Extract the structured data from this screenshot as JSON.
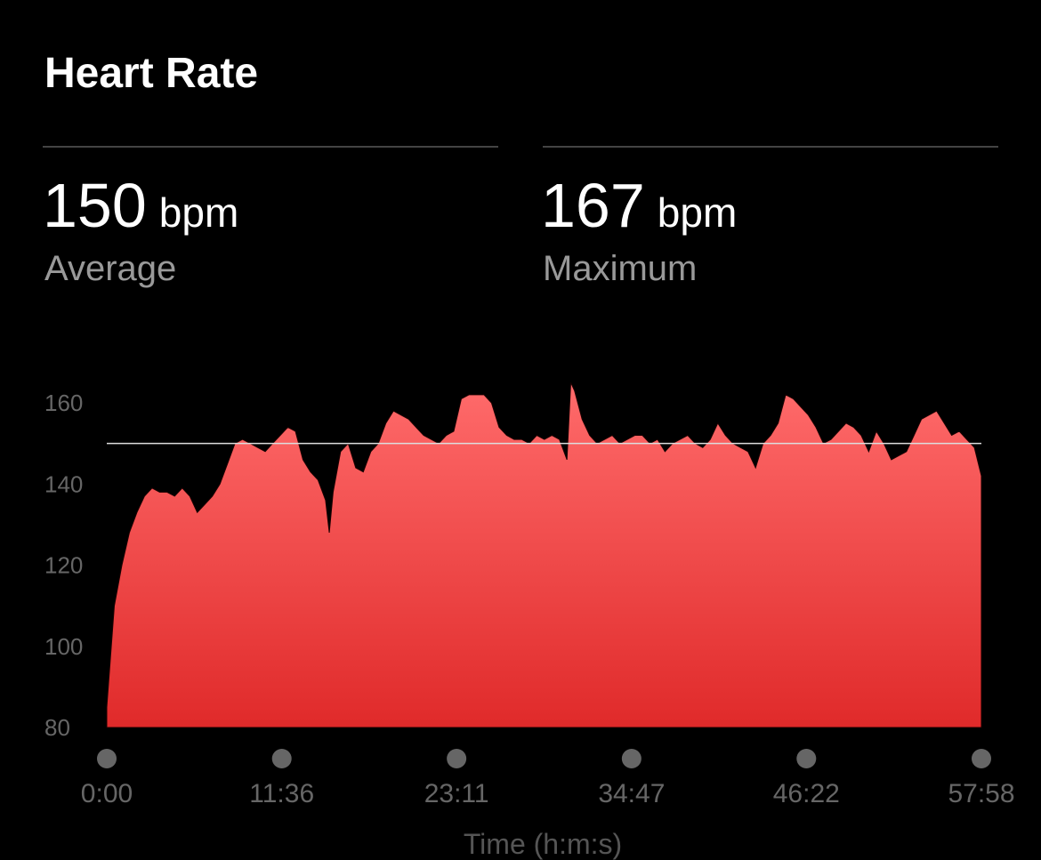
{
  "header": {
    "title": "Heart Rate"
  },
  "stats": [
    {
      "value": 150,
      "unit": "bpm",
      "label": "Average"
    },
    {
      "value": 167,
      "unit": "bpm",
      "label": "Maximum"
    }
  ],
  "chart_data": {
    "type": "area",
    "xlabel": "Time (h:m:s)",
    "x": [
      0,
      30,
      60,
      90,
      120,
      150,
      180,
      210,
      240,
      270,
      300,
      330,
      360,
      390,
      420,
      450,
      480,
      510,
      540,
      570,
      600,
      630,
      660,
      690,
      720,
      750,
      780,
      810,
      840,
      870,
      885,
      900,
      930,
      960,
      990,
      1020,
      1050,
      1080,
      1110,
      1140,
      1170,
      1200,
      1230,
      1260,
      1290,
      1320,
      1350,
      1380,
      1410,
      1440,
      1470,
      1500,
      1530,
      1560,
      1590,
      1620,
      1650,
      1680,
      1710,
      1740,
      1770,
      1800,
      1830,
      1845,
      1860,
      1890,
      1920,
      1950,
      1980,
      2010,
      2040,
      2070,
      2100,
      2130,
      2160,
      2190,
      2220,
      2250,
      2280,
      2310,
      2340,
      2370,
      2400,
      2430,
      2460,
      2490,
      2520,
      2550,
      2580,
      2610,
      2640,
      2670,
      2700,
      2730,
      2760,
      2790,
      2820,
      2850,
      2880,
      2910,
      2940,
      2970,
      3000,
      3030,
      3060,
      3090,
      3120,
      3150,
      3180,
      3210,
      3240,
      3270,
      3300,
      3330,
      3360,
      3390,
      3420,
      3450,
      3478
    ],
    "values": [
      85,
      110,
      120,
      128,
      133,
      137,
      139,
      138,
      138,
      137,
      139,
      137,
      133,
      135,
      137,
      140,
      145,
      150,
      151,
      150,
      149,
      148,
      150,
      152,
      154,
      153,
      146,
      143,
      141,
      136,
      128,
      138,
      148,
      150,
      144,
      143,
      148,
      150,
      155,
      158,
      157,
      156,
      154,
      152,
      151,
      150,
      152,
      153,
      161,
      162,
      162,
      162,
      160,
      154,
      152,
      151,
      151,
      150,
      152,
      151,
      152,
      151,
      146,
      165,
      163,
      156,
      152,
      150,
      151,
      152,
      150,
      151,
      152,
      152,
      150,
      151,
      148,
      150,
      151,
      152,
      150,
      149,
      151,
      155,
      152,
      150,
      149,
      148,
      144,
      150,
      152,
      155,
      162,
      161,
      159,
      157,
      154,
      150,
      151,
      153,
      155,
      154,
      152,
      148,
      153,
      150,
      146,
      147,
      148,
      152,
      156,
      157,
      158,
      155,
      152,
      153,
      151,
      149,
      142
    ],
    "color": "#ff6b6b",
    "xlim": [
      0,
      3478
    ],
    "xticks": [
      {
        "value": 0,
        "label": "0:00"
      },
      {
        "value": 696,
        "label": "11:36"
      },
      {
        "value": 1391,
        "label": "23:11"
      },
      {
        "value": 2087,
        "label": "34:47"
      },
      {
        "value": 2782,
        "label": "46:22"
      },
      {
        "value": 3478,
        "label": "57:58"
      }
    ],
    "ylim": [
      80,
      168
    ],
    "yticks": [
      80,
      100,
      120,
      140,
      160
    ]
  }
}
